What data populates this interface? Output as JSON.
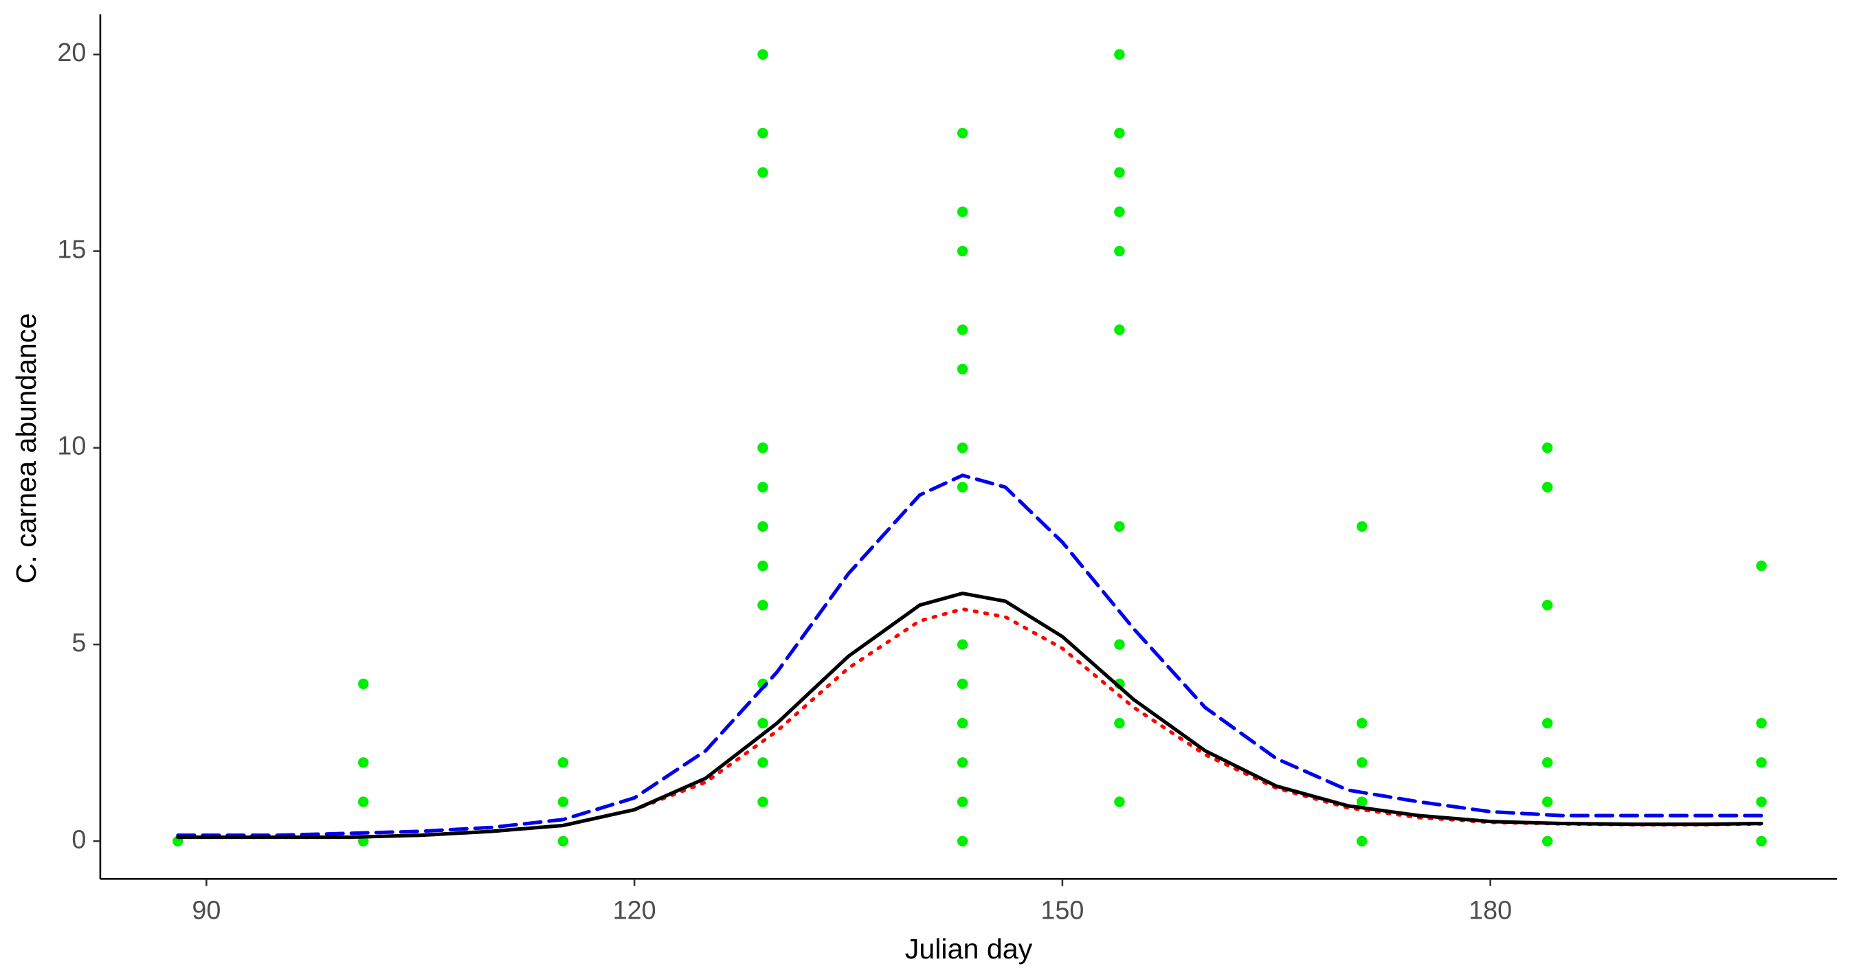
{
  "chart_data": {
    "type": "scatter",
    "x_label": "Julian day",
    "y_label": "C. carnea abundance",
    "xlim": [
      82.56,
      204.3
    ],
    "ylim": [
      -0.96,
      21.02
    ],
    "xticks": [
      90,
      120,
      150,
      180
    ],
    "yticks": [
      0,
      5,
      10,
      15,
      20
    ],
    "points": {
      "color": "#00ee00",
      "x": [
        88,
        101,
        101,
        101,
        101,
        115,
        115,
        115,
        129,
        129,
        129,
        129,
        129,
        129,
        129,
        129,
        129,
        129,
        129,
        129,
        143,
        143,
        143,
        143,
        143,
        143,
        143,
        143,
        143,
        143,
        143,
        143,
        143,
        154,
        154,
        154,
        154,
        154,
        154,
        154,
        154,
        154,
        154,
        154,
        171,
        171,
        171,
        171,
        171,
        184,
        184,
        184,
        184,
        184,
        184,
        184,
        199,
        199,
        199,
        199,
        199
      ],
      "values": [
        0,
        4,
        2,
        1,
        0,
        2,
        1,
        0,
        20,
        18,
        17,
        10,
        9,
        8,
        7,
        6,
        4,
        3,
        2,
        1,
        18,
        16,
        15,
        13,
        12,
        10,
        9,
        5,
        4,
        3,
        2,
        1,
        0,
        20,
        18,
        17,
        16,
        15,
        13,
        8,
        5,
        4,
        3,
        1,
        8,
        3,
        2,
        1,
        0,
        10,
        9,
        6,
        3,
        2,
        1,
        0,
        7,
        3,
        2,
        1,
        0
      ]
    },
    "lines": [
      {
        "color": "#ff0000",
        "style": "dotted",
        "x": [
          88,
          95,
          100,
          105,
          110,
          115,
          120,
          125,
          130,
          135,
          140,
          143,
          146,
          150,
          155,
          160,
          165,
          170,
          175,
          180,
          185,
          190,
          195,
          199
        ],
        "values": [
          0.1,
          0.1,
          0.1,
          0.15,
          0.25,
          0.4,
          0.8,
          1.5,
          2.8,
          4.4,
          5.6,
          5.9,
          5.7,
          4.9,
          3.4,
          2.2,
          1.35,
          0.85,
          0.6,
          0.48,
          0.44,
          0.42,
          0.42,
          0.44
        ]
      },
      {
        "color": "#0000ee",
        "style": "dashed",
        "x": [
          88,
          95,
          100,
          105,
          110,
          115,
          120,
          125,
          130,
          135,
          140,
          143,
          146,
          150,
          155,
          160,
          165,
          170,
          175,
          180,
          185,
          190,
          195,
          199
        ],
        "values": [
          0.15,
          0.15,
          0.2,
          0.25,
          0.35,
          0.55,
          1.1,
          2.3,
          4.3,
          6.8,
          8.8,
          9.3,
          9.0,
          7.6,
          5.4,
          3.4,
          2.1,
          1.3,
          1.0,
          0.75,
          0.65,
          0.65,
          0.65,
          0.65
        ]
      },
      {
        "color": "#000000",
        "style": "solid",
        "x": [
          88,
          95,
          100,
          105,
          110,
          115,
          120,
          125,
          130,
          135,
          140,
          143,
          146,
          150,
          155,
          160,
          165,
          170,
          175,
          180,
          185,
          190,
          195,
          199
        ],
        "values": [
          0.1,
          0.1,
          0.1,
          0.15,
          0.25,
          0.4,
          0.8,
          1.6,
          3.0,
          4.7,
          6.0,
          6.3,
          6.1,
          5.2,
          3.6,
          2.3,
          1.4,
          0.9,
          0.65,
          0.5,
          0.45,
          0.43,
          0.43,
          0.45
        ]
      }
    ]
  }
}
